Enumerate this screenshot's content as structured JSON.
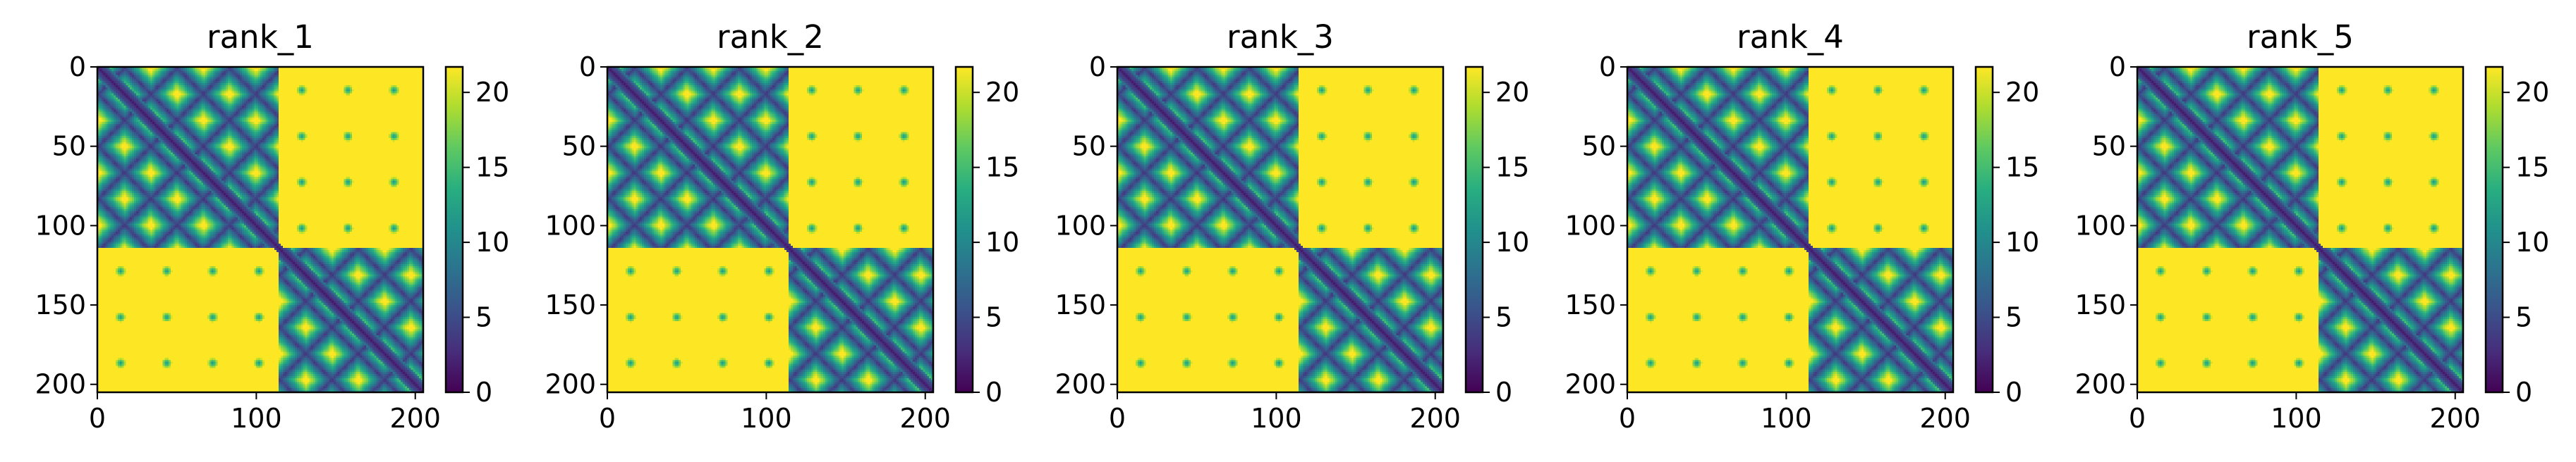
{
  "chart_data": [
    {
      "type": "heatmap",
      "title": "rank_1",
      "x_ticks": [
        "0",
        "100",
        "200"
      ],
      "y_ticks": [
        "0",
        "50",
        "100",
        "150",
        "200"
      ],
      "xlim": [
        0,
        205
      ],
      "ylim": [
        205,
        0
      ],
      "colorbar_ticks": [
        "0",
        "5",
        "10",
        "15",
        "20"
      ],
      "colorbar_range": [
        0,
        21.7
      ],
      "colormap": "viridis",
      "matrix_size": 205,
      "domain_split": 114
    },
    {
      "type": "heatmap",
      "title": "rank_2",
      "x_ticks": [
        "0",
        "100",
        "200"
      ],
      "y_ticks": [
        "0",
        "50",
        "100",
        "150",
        "200"
      ],
      "xlim": [
        0,
        205
      ],
      "ylim": [
        205,
        0
      ],
      "colorbar_ticks": [
        "0",
        "5",
        "10",
        "15",
        "20"
      ],
      "colorbar_range": [
        0,
        21.7
      ],
      "colormap": "viridis",
      "matrix_size": 205,
      "domain_split": 114
    },
    {
      "type": "heatmap",
      "title": "rank_3",
      "x_ticks": [
        "0",
        "100",
        "200"
      ],
      "y_ticks": [
        "0",
        "50",
        "100",
        "150",
        "200"
      ],
      "xlim": [
        0,
        205
      ],
      "ylim": [
        205,
        0
      ],
      "colorbar_ticks": [
        "0",
        "5",
        "10",
        "15",
        "20"
      ],
      "colorbar_range": [
        0,
        21.7
      ],
      "colormap": "viridis",
      "matrix_size": 205,
      "domain_split": 114
    },
    {
      "type": "heatmap",
      "title": "rank_4",
      "x_ticks": [
        "0",
        "100",
        "200"
      ],
      "y_ticks": [
        "0",
        "50",
        "100",
        "150",
        "200"
      ],
      "xlim": [
        0,
        205
      ],
      "ylim": [
        205,
        0
      ],
      "colorbar_ticks": [
        "0",
        "5",
        "10",
        "15",
        "20"
      ],
      "colorbar_range": [
        0,
        21.7
      ],
      "colormap": "viridis",
      "matrix_size": 205,
      "domain_split": 114
    },
    {
      "type": "heatmap",
      "title": "rank_5",
      "x_ticks": [
        "0",
        "100",
        "200"
      ],
      "y_ticks": [
        "0",
        "50",
        "100",
        "150",
        "200"
      ],
      "xlim": [
        0,
        205
      ],
      "ylim": [
        205,
        0
      ],
      "colorbar_ticks": [
        "0",
        "5",
        "10",
        "15",
        "20"
      ],
      "colorbar_range": [
        0,
        21.7
      ],
      "colormap": "viridis",
      "matrix_size": 205,
      "domain_split": 114
    }
  ],
  "colors": {
    "viridis_low": "#440154",
    "viridis_mid": "#21918c",
    "viridis_high": "#fde725",
    "axes": "#000000"
  }
}
